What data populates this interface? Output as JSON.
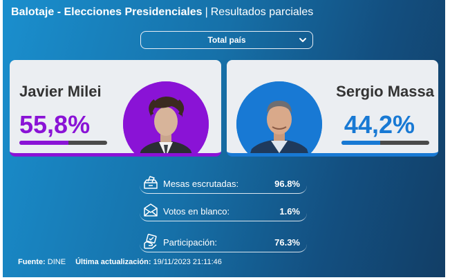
{
  "header": {
    "title": "Balotaje - Elecciones Presidenciales",
    "separator": "|",
    "subtitle": "Resultados parciales"
  },
  "region_select": {
    "value": "Total país"
  },
  "candidates": [
    {
      "name": "Javier Milei",
      "percent_label": "55,8%",
      "percent": 55.8,
      "color": "#8a13d6"
    },
    {
      "name": "Sergio Massa",
      "percent_label": "44,2%",
      "percent": 44.2,
      "color": "#1879d4"
    }
  ],
  "stats": [
    {
      "label": "Mesas escrutadas:",
      "value": "96.8%",
      "icon": "ballot-box-icon"
    },
    {
      "label": "Votos en blanco:",
      "value": "1.6%",
      "icon": "envelope-icon"
    },
    {
      "label": "Participación:",
      "value": "76.3%",
      "icon": "vote-hand-icon"
    }
  ],
  "footer": {
    "source_label": "Fuente:",
    "source": "DINE",
    "updated_label": "Última actualización:",
    "updated": "19/11/2023 21:11:46"
  }
}
